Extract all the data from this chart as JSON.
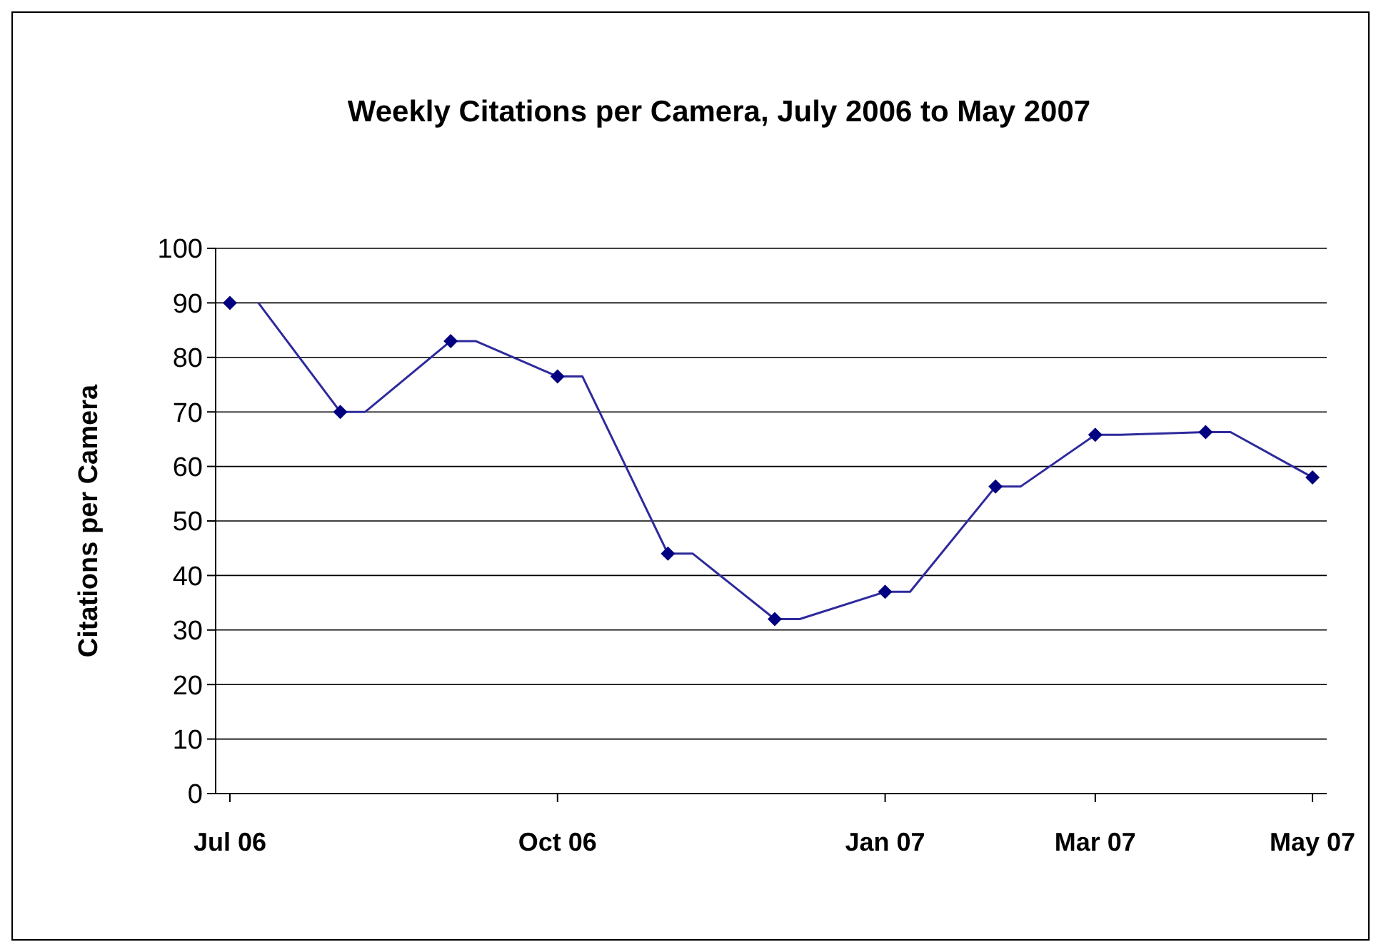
{
  "chart_data": {
    "type": "line",
    "title": "Weekly Citations per Camera, July 2006 to May 2007",
    "ylabel": "Citations per Camera",
    "xlim": [
      "2006-06-27",
      "2007-05-05"
    ],
    "xticks": [
      {
        "value": "2006-07-01",
        "label": "Jul 06"
      },
      {
        "value": "2006-10-01",
        "label": "Oct 06"
      },
      {
        "value": "2007-01-01",
        "label": "Jan 07"
      },
      {
        "value": "2007-03-01",
        "label": "Mar 07"
      },
      {
        "value": "2007-05-01",
        "label": "May 07"
      }
    ],
    "ylim": [
      0,
      100
    ],
    "yticks": [
      0,
      10,
      20,
      30,
      40,
      50,
      60,
      70,
      80,
      90,
      100
    ],
    "grid": "y",
    "series": [
      {
        "type": "line",
        "color": "#2e2a9c",
        "marker": "none",
        "line_style": "solid",
        "x": [
          "2006-07-09",
          "2006-08-01",
          "2006-08-08",
          "2006-09-01",
          "2006-09-08",
          "2006-10-01",
          "2006-10-08",
          "2006-11-01",
          "2006-11-08",
          "2006-12-01",
          "2006-12-08",
          "2007-01-01",
          "2007-01-08",
          "2007-02-01",
          "2007-02-08",
          "2007-03-01",
          "2007-03-08",
          "2007-04-01",
          "2007-04-08",
          "2007-05-01"
        ],
        "values": [
          90,
          70,
          70,
          83,
          83,
          76.5,
          76.5,
          44,
          44,
          32,
          32,
          37,
          37,
          56.3,
          56.3,
          65.8,
          65.8,
          66.3,
          66.3,
          58
        ]
      },
      {
        "type": "scatter",
        "color": "#000080",
        "marker": "diamond",
        "x": [
          "2006-07-01",
          "2006-08-01",
          "2006-09-01",
          "2006-10-01",
          "2006-11-01",
          "2006-12-01",
          "2007-01-01",
          "2007-02-01",
          "2007-03-01",
          "2007-04-01",
          "2007-05-01"
        ],
        "values": [
          90,
          70,
          83,
          76.5,
          44,
          32,
          37,
          56.3,
          65.8,
          66.3,
          58
        ]
      }
    ]
  }
}
